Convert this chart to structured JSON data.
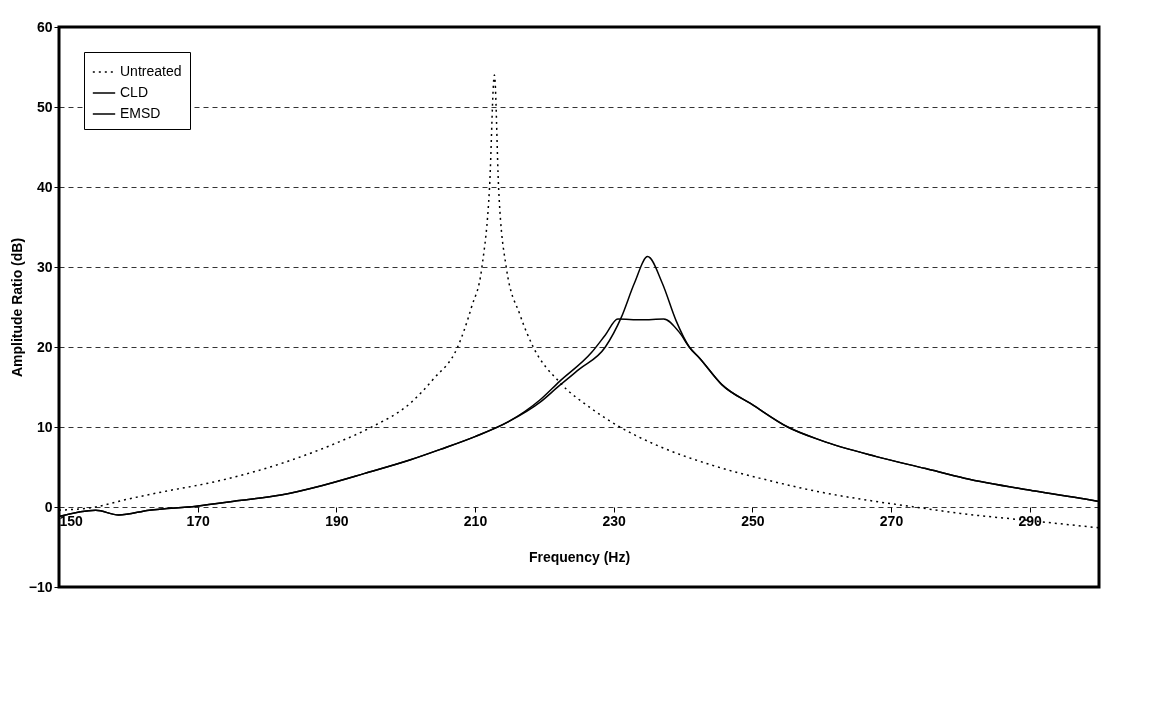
{
  "chart_data": {
    "type": "line",
    "xlabel": "Frequency (Hz)",
    "ylabel": "Amplitude Ratio (dB)",
    "xlim": [
      150,
      300
    ],
    "xticks": [
      150,
      170,
      190,
      210,
      230,
      250,
      270,
      290
    ],
    "ylim": [
      -10,
      60
    ],
    "yticks": [
      -10,
      0,
      10,
      20,
      30,
      40,
      50,
      60
    ],
    "grid": "y",
    "legend": "top left",
    "marker": "none",
    "series": [
      {
        "name": "Untreated",
        "color": "#000000",
        "line_style": "dotted",
        "x": [
          150,
          155.3,
          159.5,
          165,
          172.7,
          183.3,
          190,
          195.1,
          200.7,
          204,
          207.5,
          209.5,
          211,
          212.1,
          212.8,
          213.4,
          214.5,
          216.5,
          218.4,
          222.2,
          226.8,
          230.9,
          236,
          243.9,
          252,
          260.2,
          267,
          273.4,
          280,
          290,
          300
        ],
        "values": [
          -0.4,
          0,
          0.9,
          1.9,
          3.2,
          5.8,
          8,
          10,
          13,
          16,
          20,
          25,
          30,
          40,
          54,
          40,
          30,
          24,
          20,
          15.6,
          12.3,
          10,
          7.8,
          5.3,
          3.4,
          1.8,
          0.8,
          0,
          -0.8,
          -1.7,
          -2.6
        ]
      },
      {
        "name": "CLD",
        "color": "#000000",
        "line_style": "solid",
        "x": [
          150,
          155.3,
          158.6,
          163,
          169.8,
          176,
          182,
          188,
          194.1,
          200.7,
          205,
          210,
          214.7,
          219.4,
          222.2,
          225,
          228.8,
          231.1,
          233,
          234.9,
          237,
          239,
          240.9,
          242.4,
          245.6,
          250,
          255.1,
          260,
          267.9,
          275,
          280.6,
          290.8,
          298,
          300
        ],
        "values": [
          -1.2,
          -0.4,
          -1,
          -0.4,
          0.1,
          0.8,
          1.5,
          2.7,
          4.2,
          5.9,
          7.2,
          8.8,
          10.6,
          13.1,
          15.2,
          17.2,
          20,
          23.7,
          28,
          31.3,
          28,
          23.3,
          20,
          18.6,
          15.3,
          12.8,
          10,
          8.3,
          6.3,
          4.8,
          3.6,
          2,
          1,
          0.7
        ]
      },
      {
        "name": "EMSD",
        "color": "#000000",
        "line_style": "solid",
        "x": [
          150,
          155.3,
          158.6,
          163,
          169.8,
          176,
          182,
          188,
          194.1,
          200.7,
          205,
          210,
          214.7,
          219.4,
          222.2,
          226.8,
          228.8,
          230.6,
          234,
          237.2,
          239.5,
          240.9,
          242.4,
          245.6,
          250,
          255.1,
          260,
          267.9,
          275,
          280.6,
          290.8,
          298,
          300
        ],
        "values": [
          -1.2,
          -0.4,
          -1,
          -0.4,
          0.1,
          0.8,
          1.5,
          2.7,
          4.2,
          5.9,
          7.2,
          8.8,
          10.6,
          13.4,
          15.7,
          19.3,
          21.5,
          23.5,
          23.4,
          23.5,
          21.8,
          20,
          18.6,
          15.3,
          12.8,
          10,
          8.3,
          6.3,
          4.8,
          3.6,
          2,
          1,
          0.7
        ]
      }
    ]
  }
}
